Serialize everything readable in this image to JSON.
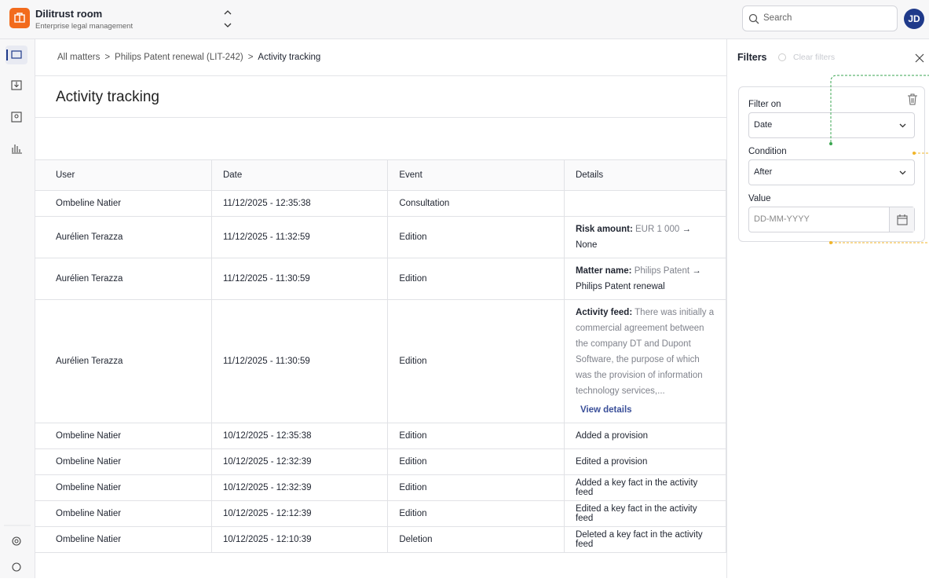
{
  "app": {
    "name": "Dilitrust room",
    "subtitle": "Enterprise legal management",
    "search_placeholder": "Search",
    "avatar": "JD"
  },
  "breadcrumb": [
    "All matters",
    "Philips Patent renewal (LIT-242)",
    "Activity tracking"
  ],
  "title": "Activity tracking",
  "table": {
    "columns": [
      "User",
      "Date",
      "Event",
      "Details"
    ],
    "rows": [
      {
        "user": "Ombeline Natier",
        "date": "11/12/2025 - 12:35:38",
        "event": "Consultation",
        "details": null
      },
      {
        "user": "Aurélien Terazza",
        "date": "11/12/2025 - 11:32:59",
        "event": "Edition",
        "details": {
          "label": "Risk amount:",
          "old": "EUR 1 000",
          "new": "None"
        }
      },
      {
        "user": "Aurélien Terazza",
        "date": "11/12/2025 - 11:30:59",
        "event": "Edition",
        "details": {
          "label": "Matter name:",
          "old": "Philips Patent",
          "new": "Philips Patent renewal"
        }
      },
      {
        "user": "Aurélien Terazza",
        "date": "11/12/2025 - 11:30:59",
        "event": "Edition",
        "details": {
          "label": "Activity feed:",
          "text": "There was initially a commercial agreement between the company DT and Dupont Software, the purpose of which was the provision of information technology services,...",
          "link": "View details"
        }
      },
      {
        "user": "Ombeline Natier",
        "date": "10/12/2025 - 12:35:38",
        "event": "Edition",
        "details": "Added a provision"
      },
      {
        "user": "Ombeline Natier",
        "date": "10/12/2025 - 12:32:39",
        "event": "Edition",
        "details": "Edited a provision"
      },
      {
        "user": "Ombeline Natier",
        "date": "10/12/2025 - 12:32:39",
        "event": "Edition",
        "details": "Added a key fact in the activity feed"
      },
      {
        "user": "Ombeline Natier",
        "date": "10/12/2025 - 12:12:39",
        "event": "Edition",
        "details": "Edited a key fact in the activity feed"
      },
      {
        "user": "Ombeline Natier",
        "date": "10/12/2025 - 12:10:39",
        "event": "Deletion",
        "details": "Deleted a key fact in the activity feed"
      }
    ]
  },
  "filters": {
    "title": "Filters",
    "clear": "Clear filters",
    "fields": [
      {
        "label": "Filter on",
        "value": "Date"
      },
      {
        "label": "Condition",
        "value": "After"
      },
      {
        "label": "Value",
        "placeholder": "DD-MM-YYYY"
      }
    ]
  }
}
